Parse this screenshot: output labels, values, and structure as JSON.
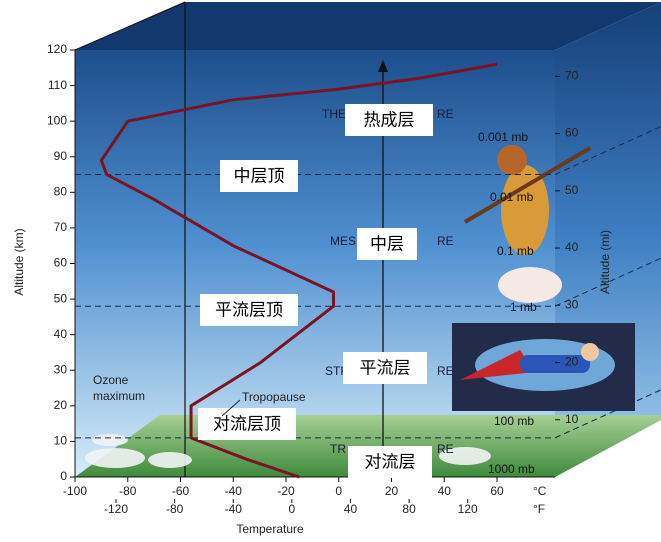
{
  "chart_data": {
    "type": "line",
    "xlabel": "Temperature",
    "ylabel": "Altitude (km)",
    "y2label": "Altitude (mi)",
    "x_unit": "°C",
    "x2_unit": "°F",
    "xlim": [
      -100,
      60
    ],
    "xticks": [
      -100,
      -80,
      -60,
      -40,
      -20,
      0,
      20,
      40,
      60
    ],
    "x2lim": [
      -148,
      140
    ],
    "x2ticks": [
      -120,
      -80,
      -40,
      0,
      40,
      80,
      120
    ],
    "ylim": [
      0,
      120
    ],
    "yticks": [
      0,
      10,
      20,
      30,
      40,
      50,
      60,
      70,
      80,
      90,
      100,
      110,
      120
    ],
    "y2lim": [
      0,
      74.6
    ],
    "y2ticks": [
      10,
      20,
      30,
      40,
      50,
      60,
      70
    ],
    "series": [
      {
        "color": "#7a1424",
        "x": [
          -15,
          -35,
          -56,
          -56,
          -30,
          -2,
          -2,
          -40,
          -70,
          -88,
          -90,
          -80,
          -40,
          0,
          30,
          60
        ],
        "values": [
          0,
          5,
          11,
          20,
          32,
          48,
          52,
          65,
          78,
          85,
          89,
          100,
          106,
          109,
          112,
          116
        ]
      }
    ],
    "boundaries": [
      11,
      48,
      85
    ],
    "layer_labels": [
      "热成层",
      "中层顶",
      "中层",
      "平流层顶",
      "平流层",
      "对流层顶",
      "对流层"
    ],
    "layer_fragments": [
      "THE",
      "RE",
      "MES",
      "RE",
      "STR",
      "RE",
      "TR",
      "RE"
    ],
    "pressure_labels": [
      "0.001 mb",
      "0.01 mb",
      "0.1 mb",
      "1 mb",
      "100 mb",
      "1000 mb"
    ],
    "annotations": [
      "Ozone\nmaximum",
      "Tropopause"
    ]
  }
}
